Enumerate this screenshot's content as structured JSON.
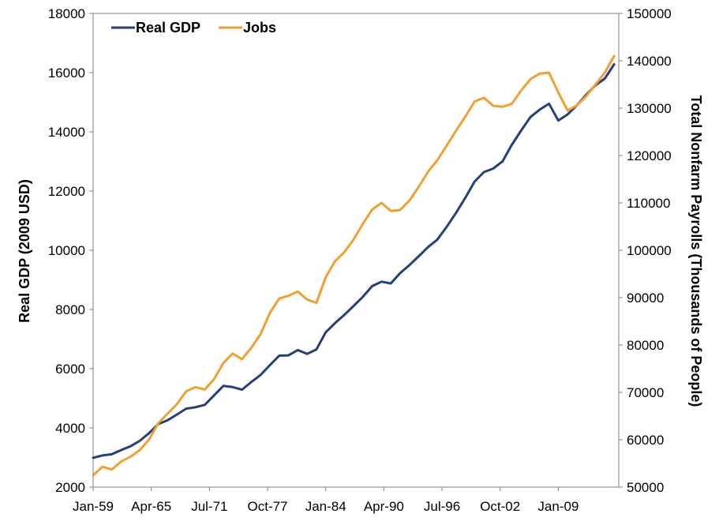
{
  "chart_data": {
    "type": "line",
    "x_ticks": [
      "Jan-59",
      "Apr-65",
      "Jul-71",
      "Oct-77",
      "Jan-84",
      "Apr-90",
      "Jul-96",
      "Oct-02",
      "Jan-09"
    ],
    "y_left": {
      "label": "Real GDP (2009 USD)",
      "ticks": [
        "2000",
        "4000",
        "6000",
        "8000",
        "10000",
        "12000",
        "14000",
        "16000",
        "18000"
      ],
      "range": [
        2000,
        18000
      ]
    },
    "y_right": {
      "label": "Total Nonfarm Payrolls (Thousands of People)",
      "ticks": [
        "50000",
        "60000",
        "70000",
        "80000",
        "90000",
        "100000",
        "110000",
        "120000",
        "130000",
        "140000",
        "150000"
      ],
      "range": [
        50000,
        150000
      ]
    },
    "legend": {
      "position": "top-left",
      "entries": [
        "Real GDP",
        "Jobs"
      ]
    },
    "grid": false,
    "series": [
      {
        "name": "Real GDP",
        "axis": "left",
        "color": "#253f7a",
        "points": [
          [
            "Jan-59",
            2990
          ],
          [
            "Jan-60",
            3070
          ],
          [
            "Jan-61",
            3110
          ],
          [
            "Jan-62",
            3250
          ],
          [
            "Jan-63",
            3380
          ],
          [
            "Jan-64",
            3560
          ],
          [
            "Jan-65",
            3820
          ],
          [
            "Jan-66",
            4130
          ],
          [
            "Jan-67",
            4260
          ],
          [
            "Jan-68",
            4450
          ],
          [
            "Jan-69",
            4650
          ],
          [
            "Jan-70",
            4700
          ],
          [
            "Jan-71",
            4780
          ],
          [
            "Jan-72",
            5100
          ],
          [
            "Jan-73",
            5420
          ],
          [
            "Jan-74",
            5380
          ],
          [
            "Jan-75",
            5290
          ],
          [
            "Jan-76",
            5550
          ],
          [
            "Jan-77",
            5790
          ],
          [
            "Jan-78",
            6120
          ],
          [
            "Jan-79",
            6440
          ],
          [
            "Jan-80",
            6450
          ],
          [
            "Jan-81",
            6630
          ],
          [
            "Jan-82",
            6500
          ],
          [
            "Jan-83",
            6650
          ],
          [
            "Jan-84",
            7230
          ],
          [
            "Jan-85",
            7540
          ],
          [
            "Jan-86",
            7820
          ],
          [
            "Jan-87",
            8120
          ],
          [
            "Jan-88",
            8430
          ],
          [
            "Jan-89",
            8790
          ],
          [
            "Jan-90",
            8940
          ],
          [
            "Jan-91",
            8880
          ],
          [
            "Jan-92",
            9230
          ],
          [
            "Jan-93",
            9500
          ],
          [
            "Jan-94",
            9800
          ],
          [
            "Jan-95",
            10110
          ],
          [
            "Jan-96",
            10360
          ],
          [
            "Jan-97",
            10790
          ],
          [
            "Jan-98",
            11260
          ],
          [
            "Jan-99",
            11770
          ],
          [
            "Jan-00",
            12320
          ],
          [
            "Jan-01",
            12640
          ],
          [
            "Jan-02",
            12760
          ],
          [
            "Jan-03",
            13000
          ],
          [
            "Jan-04",
            13560
          ],
          [
            "Jan-05",
            14040
          ],
          [
            "Jan-06",
            14500
          ],
          [
            "Jan-07",
            14750
          ],
          [
            "Jan-08",
            14950
          ],
          [
            "Jan-09",
            14380
          ],
          [
            "Jan-10",
            14590
          ],
          [
            "Jan-11",
            14900
          ],
          [
            "Jan-12",
            15250
          ],
          [
            "Jan-13",
            15570
          ],
          [
            "Jan-14",
            15800
          ],
          [
            "Jan-15",
            16280
          ]
        ]
      },
      {
        "name": "Jobs",
        "axis": "right",
        "color": "#f0a030",
        "points": [
          [
            "Jan-59",
            52500
          ],
          [
            "Jan-60",
            54300
          ],
          [
            "Jan-61",
            53700
          ],
          [
            "Jan-62",
            55400
          ],
          [
            "Jan-63",
            56400
          ],
          [
            "Jan-64",
            57800
          ],
          [
            "Jan-65",
            60000
          ],
          [
            "Jan-66",
            63500
          ],
          [
            "Jan-67",
            65500
          ],
          [
            "Jan-68",
            67500
          ],
          [
            "Jan-69",
            70200
          ],
          [
            "Jan-70",
            71100
          ],
          [
            "Jan-71",
            70600
          ],
          [
            "Jan-72",
            72800
          ],
          [
            "Jan-73",
            76200
          ],
          [
            "Jan-74",
            78200
          ],
          [
            "Jan-75",
            77000
          ],
          [
            "Jan-76",
            79400
          ],
          [
            "Jan-77",
            82300
          ],
          [
            "Jan-78",
            86800
          ],
          [
            "Jan-79",
            89800
          ],
          [
            "Jan-80",
            90400
          ],
          [
            "Jan-81",
            91300
          ],
          [
            "Jan-82",
            89600
          ],
          [
            "Jan-83",
            88900
          ],
          [
            "Jan-84",
            94300
          ],
          [
            "Jan-85",
            97700
          ],
          [
            "Jan-86",
            99600
          ],
          [
            "Jan-87",
            102300
          ],
          [
            "Jan-88",
            105600
          ],
          [
            "Jan-89",
            108600
          ],
          [
            "Jan-90",
            110000
          ],
          [
            "Jan-91",
            108300
          ],
          [
            "Jan-92",
            108500
          ],
          [
            "Jan-93",
            110500
          ],
          [
            "Jan-94",
            113400
          ],
          [
            "Jan-95",
            116600
          ],
          [
            "Jan-96",
            119000
          ],
          [
            "Jan-97",
            122100
          ],
          [
            "Jan-98",
            125200
          ],
          [
            "Jan-99",
            128200
          ],
          [
            "Jan-00",
            131400
          ],
          [
            "Jan-01",
            132200
          ],
          [
            "Jan-02",
            130500
          ],
          [
            "Jan-03",
            130300
          ],
          [
            "Jan-04",
            130900
          ],
          [
            "Jan-05",
            133700
          ],
          [
            "Jan-06",
            136100
          ],
          [
            "Jan-07",
            137300
          ],
          [
            "Jan-08",
            137500
          ],
          [
            "Jan-09",
            133300
          ],
          [
            "Jan-10",
            129500
          ],
          [
            "Jan-11",
            130600
          ],
          [
            "Jan-12",
            132500
          ],
          [
            "Jan-13",
            135000
          ],
          [
            "Jan-14",
            137500
          ],
          [
            "Jan-15",
            141000
          ]
        ]
      }
    ]
  }
}
